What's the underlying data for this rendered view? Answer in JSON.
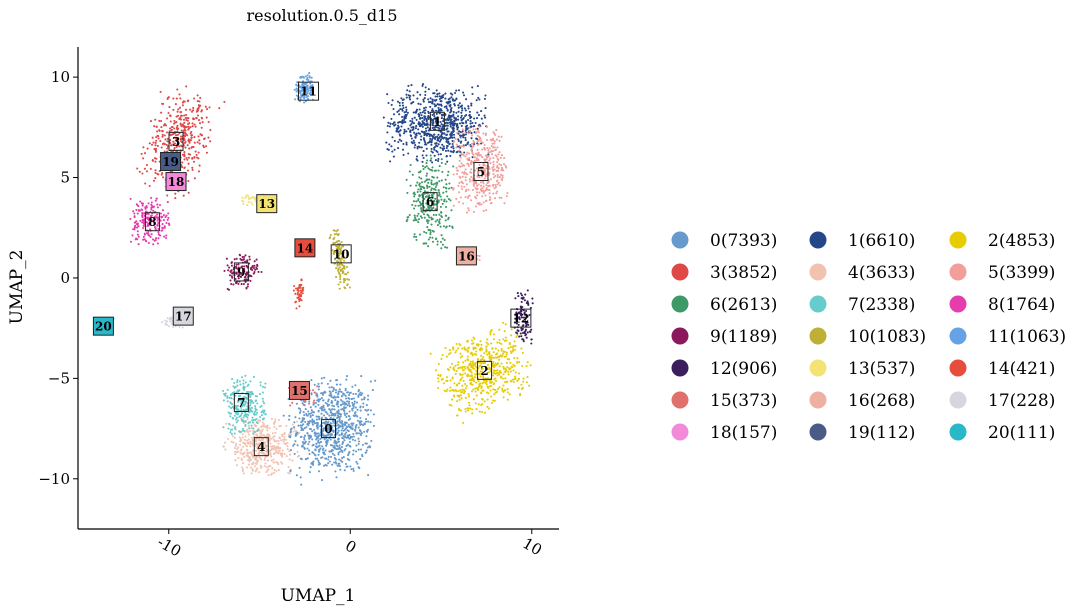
{
  "chart_data": {
    "type": "scatter",
    "title": "resolution.0.5_d15",
    "xlabel": "UMAP_1",
    "ylabel": "UMAP_2",
    "xlim": [
      -15,
      11.5
    ],
    "ylim": [
      -12.5,
      11.5
    ],
    "xticks": [
      -10,
      0,
      10
    ],
    "xtick_labels": [
      "-10",
      "0",
      "10"
    ],
    "yticks": [
      -10,
      -5,
      0,
      5,
      10
    ],
    "ytick_labels": [
      "−10",
      "−5",
      "0",
      "5",
      "10"
    ],
    "grid": false,
    "legend_position": "right",
    "clusters": [
      {
        "id": "0",
        "label": "0(7393)",
        "count": 7393,
        "color": "#6699CC",
        "center": [
          -1,
          -7.4
        ],
        "rx": 2.2,
        "ry": 2.3,
        "rot": 0
      },
      {
        "id": "1",
        "label": "1(6610)",
        "count": 6610,
        "color": "#24478A",
        "center": [
          4.8,
          7.7
        ],
        "rx": 2.7,
        "ry": 1.8,
        "rot": 0
      },
      {
        "id": "2",
        "label": "2(4853)",
        "count": 4853,
        "color": "#E6CC00",
        "center": [
          7.3,
          -4.6
        ],
        "rx": 2.4,
        "ry": 1.9,
        "rot": 20
      },
      {
        "id": "3",
        "label": "3(3852)",
        "count": 3852,
        "color": "#E04848",
        "center": [
          -9.5,
          6.8
        ],
        "rx": 1.6,
        "ry": 2.5,
        "rot": -20
      },
      {
        "id": "4",
        "label": "4(3633)",
        "count": 3633,
        "color": "#F2C2B0",
        "center": [
          -4.9,
          -8.4
        ],
        "rx": 1.9,
        "ry": 1.3,
        "rot": 0
      },
      {
        "id": "5",
        "label": "5(3399)",
        "count": 3399,
        "color": "#F29E9A",
        "center": [
          7.2,
          5.4
        ],
        "rx": 1.5,
        "ry": 2.0,
        "rot": 0
      },
      {
        "id": "6",
        "label": "6(2613)",
        "count": 2613,
        "color": "#3D9966",
        "center": [
          4.4,
          3.8
        ],
        "rx": 1.2,
        "ry": 2.2,
        "rot": 0
      },
      {
        "id": "7",
        "label": "7(2338)",
        "count": 2338,
        "color": "#66CCCC",
        "center": [
          -5.8,
          -6.4
        ],
        "rx": 1.1,
        "ry": 1.4,
        "rot": 0
      },
      {
        "id": "8",
        "label": "8(1764)",
        "count": 1764,
        "color": "#E63DAD",
        "center": [
          -11.1,
          2.8
        ],
        "rx": 1.1,
        "ry": 1.1,
        "rot": 0
      },
      {
        "id": "9",
        "label": "9(1189)",
        "count": 1189,
        "color": "#8A1A5C",
        "center": [
          -5.9,
          0.3
        ],
        "rx": 1.0,
        "ry": 0.9,
        "rot": 0
      },
      {
        "id": "10",
        "label": "10(1083)",
        "count": 1083,
        "color": "#BDB035",
        "center": [
          -0.6,
          1.0
        ],
        "rx": 0.35,
        "ry": 1.5,
        "rot": 10
      },
      {
        "id": "11",
        "label": "11(1063)",
        "count": 1063,
        "color": "#66A3E6",
        "center": [
          -2.5,
          9.5
        ],
        "rx": 0.55,
        "ry": 0.7,
        "rot": 0
      },
      {
        "id": "12",
        "label": "12(906)",
        "count": 906,
        "color": "#3A1F5C",
        "center": [
          9.5,
          -2.0
        ],
        "rx": 0.5,
        "ry": 1.3,
        "rot": 0
      },
      {
        "id": "13",
        "label": "13(537)",
        "count": 537,
        "color": "#F2E373",
        "center": [
          -5.2,
          3.9
        ],
        "rx": 0.9,
        "ry": 0.3,
        "rot": 0
      },
      {
        "id": "14",
        "label": "14(421)",
        "count": 421,
        "color": "#E64D3D",
        "center": [
          -2.8,
          -0.8
        ],
        "rx": 0.3,
        "ry": 0.7,
        "rot": 0
      },
      {
        "id": "15",
        "label": "15(373)",
        "count": 373,
        "color": "#E0706B",
        "center": [
          -2.5,
          -5.8
        ],
        "rx": 0.8,
        "ry": 0.6,
        "rot": 0
      },
      {
        "id": "16",
        "label": "16(268)",
        "count": 268,
        "color": "#EDB0A3",
        "center": [
          6.6,
          1.0
        ],
        "rx": 0.5,
        "ry": 0.3,
        "rot": 0
      },
      {
        "id": "17",
        "label": "17(228)",
        "count": 228,
        "color": "#D6D6DE",
        "center": [
          -9.8,
          -2.2
        ],
        "rx": 0.6,
        "ry": 0.3,
        "rot": 0
      },
      {
        "id": "18",
        "label": "18(157)",
        "count": 157,
        "color": "#F28AD9",
        "center": [
          -9.8,
          4.8
        ],
        "rx": 0.4,
        "ry": 0.4,
        "rot": 0
      },
      {
        "id": "19",
        "label": "19(112)",
        "count": 112,
        "color": "#4A5C85",
        "center": [
          -10.0,
          5.8
        ],
        "rx": 0.3,
        "ry": 0.3,
        "rot": 0
      },
      {
        "id": "20",
        "label": "20(111)",
        "count": 111,
        "color": "#29B8C7",
        "center": [
          -13.3,
          -2.3
        ],
        "rx": 0.25,
        "ry": 0.25,
        "rot": 0
      }
    ],
    "cluster_labels": [
      {
        "text": "0",
        "at": [
          -1.2,
          -7.5
        ],
        "fill": "none",
        "textColor": "#000000"
      },
      {
        "text": "1",
        "at": [
          4.8,
          7.8
        ],
        "fill": "none",
        "textColor": "#ffffff"
      },
      {
        "text": "2",
        "at": [
          7.4,
          -4.6
        ],
        "fill": "none",
        "textColor": "#000000"
      },
      {
        "text": "3",
        "at": [
          -9.6,
          6.8
        ],
        "fill": "none",
        "textColor": "#000000"
      },
      {
        "text": "4",
        "at": [
          -4.9,
          -8.4
        ],
        "fill": "none",
        "textColor": "#000000"
      },
      {
        "text": "5",
        "at": [
          7.2,
          5.3
        ],
        "fill": "none",
        "textColor": "#000000"
      },
      {
        "text": "6",
        "at": [
          4.4,
          3.8
        ],
        "fill": "none",
        "textColor": "#000000"
      },
      {
        "text": "7",
        "at": [
          -6.0,
          -6.2
        ],
        "fill": "none",
        "textColor": "#000000"
      },
      {
        "text": "8",
        "at": [
          -10.9,
          2.8
        ],
        "fill": "none",
        "textColor": "#000000"
      },
      {
        "text": "9",
        "at": [
          -6.0,
          0.3
        ],
        "fill": "none",
        "textColor": "#ffffff"
      },
      {
        "text": "10",
        "at": [
          -0.5,
          1.2
        ],
        "fill": "none",
        "textColor": "#000000"
      },
      {
        "text": "11",
        "at": [
          -2.3,
          9.3
        ],
        "fill": "none",
        "textColor": "#000000"
      },
      {
        "text": "12",
        "at": [
          9.4,
          -2.0
        ],
        "fill": "none",
        "textColor": "#ffffff"
      },
      {
        "text": "13",
        "at": [
          -4.6,
          3.7
        ],
        "fill": "#F2E373",
        "textColor": "#000000"
      },
      {
        "text": "14",
        "at": [
          -2.5,
          1.5
        ],
        "fill": "#E64D3D",
        "textColor": "#ffffff"
      },
      {
        "text": "15",
        "at": [
          -2.8,
          -5.6
        ],
        "fill": "#E0706B",
        "textColor": "#000000"
      },
      {
        "text": "16",
        "at": [
          6.4,
          1.1
        ],
        "fill": "#EDB0A3",
        "textColor": "#000000"
      },
      {
        "text": "17",
        "at": [
          -9.2,
          -1.9
        ],
        "fill": "#D6D6DE",
        "textColor": "#000000"
      },
      {
        "text": "18",
        "at": [
          -9.6,
          4.8
        ],
        "fill": "#F28AD9",
        "textColor": "#000000"
      },
      {
        "text": "19",
        "at": [
          -9.9,
          5.8
        ],
        "fill": "#4A5C85",
        "textColor": "#ffffff"
      },
      {
        "text": "20",
        "at": [
          -13.6,
          -2.4
        ],
        "fill": "#29B8C7",
        "textColor": "#000000"
      }
    ]
  }
}
